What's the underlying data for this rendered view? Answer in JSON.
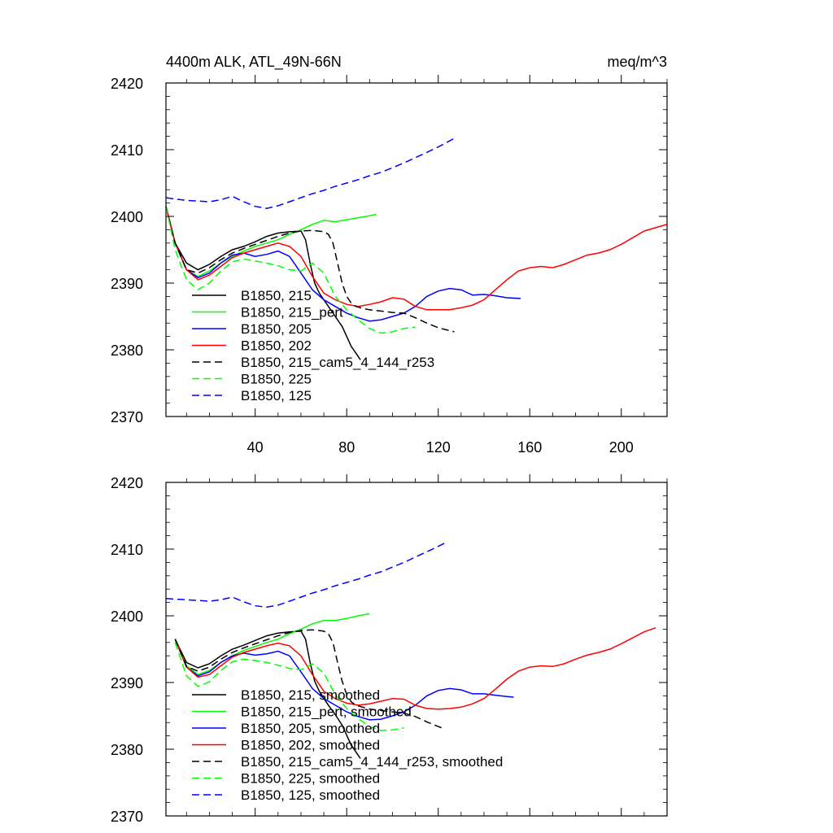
{
  "header": {
    "title_left": "4400m ALK, ATL_49N-66N",
    "title_right": "meq/m^3"
  },
  "chart_data": [
    {
      "type": "line",
      "title": "4400m ALK, ATL_49N-66N",
      "units": "meq/m^3",
      "xlim": [
        1,
        220
      ],
      "ylim": [
        2370,
        2420
      ],
      "xticks": [
        40,
        80,
        120,
        160,
        200
      ],
      "yticks": [
        2370,
        2380,
        2390,
        2400,
        2410,
        2420
      ],
      "show_x_tick_labels": true,
      "legend_location": "lower-left",
      "series": [
        {
          "name": "B1850, 215",
          "color": "#000000",
          "dash": "solid",
          "x": [
            1,
            5,
            10,
            15,
            20,
            25,
            30,
            35,
            40,
            45,
            50,
            55,
            60,
            62,
            64,
            66,
            68,
            70,
            72,
            75,
            78,
            80,
            82,
            84,
            86
          ],
          "y": [
            2401.5,
            2396,
            2393,
            2392,
            2392.8,
            2394,
            2395,
            2395.5,
            2396.2,
            2397,
            2397.5,
            2397.7,
            2397.8,
            2396.5,
            2393,
            2390,
            2388.5,
            2387.5,
            2386.5,
            2385,
            2383.5,
            2382,
            2380.5,
            2379.5,
            2378.5
          ]
        },
        {
          "name": "B1850, 215_pert",
          "color": "#00ff00",
          "dash": "solid",
          "x": [
            1,
            5,
            10,
            15,
            20,
            25,
            30,
            35,
            40,
            45,
            50,
            55,
            60,
            65,
            70,
            75,
            80,
            85,
            90,
            93
          ],
          "y": [
            2401.5,
            2396,
            2392,
            2391,
            2391.8,
            2393,
            2394,
            2394.8,
            2395.5,
            2396,
            2396.5,
            2397.3,
            2398,
            2398.8,
            2399.4,
            2399.2,
            2399.5,
            2399.8,
            2400.1,
            2400.3
          ]
        },
        {
          "name": "B1850, 205",
          "color": "#0000ff",
          "dash": "solid",
          "x": [
            1,
            5,
            10,
            15,
            20,
            25,
            30,
            35,
            40,
            45,
            50,
            55,
            60,
            65,
            70,
            75,
            80,
            85,
            90,
            95,
            100,
            105,
            110,
            115,
            120,
            125,
            130,
            135,
            140,
            145,
            150,
            156
          ],
          "y": [
            2401.5,
            2396,
            2392,
            2390.8,
            2391.5,
            2393,
            2394.2,
            2394.5,
            2394,
            2394.3,
            2394.8,
            2394,
            2391.5,
            2389,
            2387.5,
            2386.5,
            2385.5,
            2384.8,
            2384.3,
            2384.5,
            2385,
            2385.5,
            2386.5,
            2388,
            2388.8,
            2389.2,
            2389,
            2388.2,
            2388.3,
            2388.1,
            2387.8,
            2387.7
          ]
        },
        {
          "name": "B1850, 202",
          "color": "#ff0000",
          "dash": "solid",
          "x": [
            1,
            5,
            10,
            15,
            20,
            25,
            30,
            35,
            40,
            45,
            50,
            55,
            60,
            65,
            70,
            75,
            80,
            85,
            90,
            95,
            100,
            105,
            110,
            115,
            120,
            125,
            130,
            135,
            140,
            145,
            150,
            155,
            160,
            165,
            170,
            175,
            180,
            185,
            190,
            195,
            200,
            205,
            210,
            215,
            220
          ],
          "y": [
            2401.5,
            2396,
            2392,
            2390.5,
            2391.2,
            2392.5,
            2393.8,
            2394.5,
            2395,
            2395.5,
            2396,
            2395.5,
            2394,
            2391,
            2388.5,
            2387.5,
            2386.8,
            2386.5,
            2386.8,
            2387.2,
            2387.8,
            2387.6,
            2386.5,
            2386,
            2386,
            2386,
            2386.3,
            2386.7,
            2387.5,
            2389,
            2390.5,
            2391.8,
            2392.3,
            2392.5,
            2392.3,
            2392.8,
            2393.5,
            2394.2,
            2394.5,
            2395,
            2395.8,
            2396.8,
            2397.8,
            2398.3,
            2398.8
          ]
        },
        {
          "name": "B1850, 215_cam5_4_144_r253",
          "color": "#000000",
          "dash": "dashed",
          "x": [
            1,
            5,
            10,
            15,
            20,
            25,
            30,
            35,
            40,
            45,
            50,
            55,
            60,
            65,
            70,
            72,
            74,
            76,
            78,
            80,
            82,
            84,
            87,
            90,
            95,
            100,
            105,
            110,
            115,
            120,
            127
          ],
          "y": [
            2401.5,
            2396,
            2392,
            2391.5,
            2392.3,
            2393.5,
            2394.5,
            2395.2,
            2395.8,
            2396.4,
            2397,
            2397.5,
            2397.8,
            2397.9,
            2397.7,
            2397.3,
            2396,
            2393,
            2390,
            2388,
            2387,
            2386.5,
            2386.2,
            2386,
            2385.8,
            2385.6,
            2385.5,
            2384.8,
            2384,
            2383.3,
            2382.7
          ]
        },
        {
          "name": "B1850, 225",
          "color": "#00ff00",
          "dash": "dashed",
          "x": [
            1,
            5,
            10,
            15,
            20,
            25,
            30,
            35,
            40,
            45,
            50,
            55,
            60,
            65,
            70,
            75,
            80,
            85,
            90,
            95,
            100,
            105,
            110
          ],
          "y": [
            2401.5,
            2395,
            2390.5,
            2389,
            2390,
            2391.8,
            2393.2,
            2393.6,
            2393.3,
            2393,
            2392.6,
            2392,
            2391.8,
            2393,
            2391.5,
            2388,
            2386,
            2384.5,
            2383.2,
            2382.5,
            2382.7,
            2383.2,
            2383.4
          ]
        },
        {
          "name": "B1850, 125",
          "color": "#0000ff",
          "dash": "dashed",
          "x": [
            1,
            5,
            10,
            15,
            20,
            25,
            30,
            35,
            40,
            45,
            50,
            55,
            60,
            65,
            70,
            75,
            80,
            85,
            90,
            95,
            100,
            105,
            110,
            115,
            120,
            127
          ],
          "y": [
            2402.8,
            2402.6,
            2402.4,
            2402.3,
            2402.2,
            2402.5,
            2403,
            2402.2,
            2401.5,
            2401.2,
            2401.6,
            2402.2,
            2402.8,
            2403.4,
            2403.9,
            2404.5,
            2405,
            2405.5,
            2406.1,
            2406.6,
            2407.3,
            2408,
            2408.8,
            2409.6,
            2410.4,
            2411.7
          ]
        }
      ]
    },
    {
      "type": "line",
      "xlim": [
        1,
        220
      ],
      "ylim": [
        2370,
        2420
      ],
      "xticks": [
        40,
        80,
        120,
        160,
        200
      ],
      "yticks": [
        2370,
        2380,
        2390,
        2400,
        2410,
        2420
      ],
      "show_x_tick_labels": false,
      "legend_location": "lower-left",
      "series": [
        {
          "name": "B1850, 215, smoothed",
          "color": "#000000",
          "dash": "solid",
          "x": [
            5,
            10,
            15,
            20,
            25,
            30,
            35,
            40,
            45,
            50,
            55,
            60,
            62,
            64,
            66,
            68,
            70,
            72,
            75,
            78,
            80,
            82,
            84,
            86
          ],
          "y": [
            2396.5,
            2393,
            2392.2,
            2392.8,
            2394,
            2395,
            2395.6,
            2396.3,
            2397,
            2397.4,
            2397.6,
            2397.7,
            2396.5,
            2393,
            2390.2,
            2388.7,
            2387.6,
            2386.6,
            2385.2,
            2383.6,
            2382.1,
            2380.6,
            2379.6,
            2378.6
          ]
        },
        {
          "name": "B1850, 215_pert, smoothed",
          "color": "#00ff00",
          "dash": "solid",
          "x": [
            5,
            10,
            15,
            20,
            25,
            30,
            35,
            40,
            45,
            50,
            55,
            60,
            65,
            70,
            75,
            80,
            85,
            90
          ],
          "y": [
            2396.5,
            2392.5,
            2391.2,
            2391.8,
            2393,
            2394,
            2394.8,
            2395.4,
            2396,
            2396.5,
            2397.3,
            2398,
            2398.8,
            2399.3,
            2399.3,
            2399.6,
            2400,
            2400.3
          ]
        },
        {
          "name": "B1850, 205, smoothed",
          "color": "#0000ff",
          "dash": "solid",
          "x": [
            5,
            10,
            15,
            20,
            25,
            30,
            35,
            40,
            45,
            50,
            55,
            60,
            65,
            70,
            75,
            80,
            85,
            90,
            95,
            100,
            105,
            110,
            115,
            120,
            125,
            130,
            135,
            140,
            145,
            150,
            153
          ],
          "y": [
            2396.5,
            2392.3,
            2391,
            2391.6,
            2393,
            2394,
            2394.4,
            2394.1,
            2394.3,
            2394.7,
            2394,
            2391.6,
            2389.1,
            2387.6,
            2386.6,
            2385.6,
            2384.9,
            2384.4,
            2384.5,
            2385,
            2385.6,
            2386.6,
            2388,
            2388.8,
            2389.1,
            2388.9,
            2388.3,
            2388.3,
            2388.1,
            2387.9,
            2387.8
          ]
        },
        {
          "name": "B1850, 202, smoothed",
          "color": "#ff0000",
          "dash": "solid",
          "x": [
            5,
            10,
            15,
            20,
            25,
            30,
            35,
            40,
            45,
            50,
            55,
            60,
            65,
            70,
            75,
            80,
            85,
            90,
            95,
            100,
            105,
            110,
            115,
            120,
            125,
            130,
            135,
            140,
            145,
            150,
            155,
            160,
            165,
            170,
            175,
            180,
            185,
            190,
            195,
            200,
            205,
            210,
            215
          ],
          "y": [
            2396.5,
            2392.3,
            2390.8,
            2391.2,
            2392.5,
            2393.8,
            2394.5,
            2395,
            2395.5,
            2395.9,
            2395.5,
            2394,
            2391.2,
            2388.7,
            2387.6,
            2386.9,
            2386.6,
            2386.8,
            2387.2,
            2387.6,
            2387.5,
            2386.6,
            2386.1,
            2386,
            2386.1,
            2386.3,
            2386.8,
            2387.6,
            2389,
            2390.5,
            2391.7,
            2392.3,
            2392.5,
            2392.4,
            2392.8,
            2393.5,
            2394.1,
            2394.5,
            2395,
            2395.8,
            2396.7,
            2397.6,
            2398.2
          ]
        },
        {
          "name": "B1850, 215_cam5_4_144_r253, smoothed",
          "color": "#000000",
          "dash": "dashed",
          "x": [
            5,
            10,
            15,
            20,
            25,
            30,
            35,
            40,
            45,
            50,
            55,
            60,
            65,
            70,
            72,
            74,
            76,
            78,
            80,
            82,
            84,
            87,
            90,
            95,
            100,
            105,
            110,
            115,
            120,
            123
          ],
          "y": [
            2396.5,
            2392.4,
            2391.7,
            2392.3,
            2393.5,
            2394.5,
            2395.2,
            2395.8,
            2396.4,
            2397,
            2397.5,
            2397.8,
            2397.9,
            2397.7,
            2397.3,
            2396,
            2393,
            2390.2,
            2388.2,
            2387.1,
            2386.6,
            2386.3,
            2386,
            2385.8,
            2385.6,
            2385.4,
            2384.9,
            2384.1,
            2383.4,
            2383
          ]
        },
        {
          "name": "B1850, 225, smoothed",
          "color": "#00ff00",
          "dash": "dashed",
          "x": [
            5,
            10,
            15,
            20,
            25,
            30,
            35,
            40,
            45,
            50,
            55,
            60,
            65,
            70,
            75,
            80,
            85,
            90,
            95,
            100,
            105
          ],
          "y": [
            2396,
            2391,
            2389.4,
            2390.1,
            2391.8,
            2393.1,
            2393.5,
            2393.3,
            2393,
            2392.6,
            2392.1,
            2391.9,
            2392.8,
            2391.4,
            2388.2,
            2386.1,
            2384.6,
            2383.4,
            2382.8,
            2382.9,
            2383.2
          ]
        },
        {
          "name": "B1850, 125, smoothed",
          "color": "#0000ff",
          "dash": "dashed",
          "x": [
            1,
            5,
            10,
            15,
            20,
            25,
            30,
            35,
            40,
            45,
            50,
            55,
            60,
            65,
            70,
            75,
            80,
            85,
            90,
            95,
            100,
            105,
            110,
            115,
            120,
            124
          ],
          "y": [
            2402.6,
            2402.5,
            2402.4,
            2402.3,
            2402.2,
            2402.4,
            2402.8,
            2402.1,
            2401.5,
            2401.3,
            2401.6,
            2402.2,
            2402.8,
            2403.4,
            2403.9,
            2404.5,
            2405,
            2405.5,
            2406.1,
            2406.6,
            2407.3,
            2408,
            2408.8,
            2409.6,
            2410.4,
            2411.1
          ]
        }
      ]
    }
  ]
}
